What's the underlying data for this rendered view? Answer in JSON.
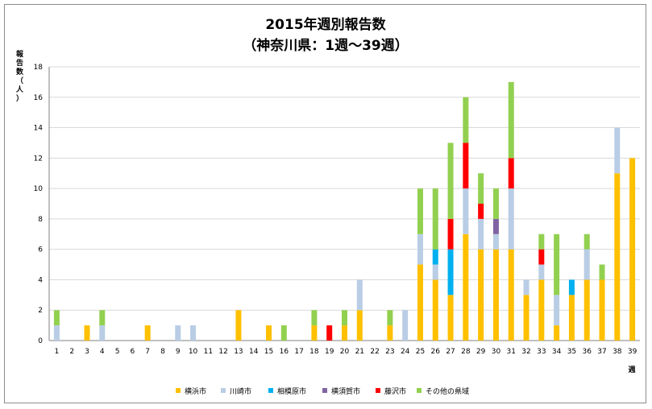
{
  "chart_data": {
    "type": "bar",
    "stacked": true,
    "title": "2015年週別報告数",
    "subtitle": "（神奈川県：1週～39週）",
    "xlabel": "週",
    "ylabel": "報告数（人）",
    "ylim": [
      0,
      18
    ],
    "yticks": [
      0,
      2,
      4,
      6,
      8,
      10,
      12,
      14,
      16,
      18
    ],
    "grid": true,
    "legend_position": "bottom",
    "categories": [
      "1",
      "2",
      "3",
      "4",
      "5",
      "6",
      "7",
      "8",
      "9",
      "10",
      "11",
      "12",
      "13",
      "14",
      "15",
      "16",
      "17",
      "18",
      "19",
      "20",
      "21",
      "22",
      "23",
      "24",
      "25",
      "26",
      "27",
      "28",
      "29",
      "30",
      "31",
      "32",
      "33",
      "34",
      "35",
      "36",
      "37",
      "38",
      "39"
    ],
    "series": [
      {
        "name": "横浜市",
        "color": "#FFC000",
        "values": [
          0,
          0,
          1,
          0,
          0,
          0,
          1,
          0,
          0,
          0,
          0,
          0,
          2,
          0,
          1,
          0,
          0,
          1,
          0,
          1,
          2,
          0,
          1,
          0,
          5,
          4,
          3,
          7,
          6,
          6,
          6,
          3,
          4,
          1,
          3,
          4,
          4,
          11,
          12
        ]
      },
      {
        "name": "川崎市",
        "color": "#B9CDE5",
        "values": [
          1,
          0,
          0,
          1,
          0,
          0,
          0,
          0,
          1,
          1,
          0,
          0,
          0,
          0,
          0,
          0,
          0,
          0,
          0,
          0,
          2,
          0,
          0,
          2,
          2,
          1,
          0,
          3,
          2,
          1,
          4,
          1,
          1,
          2,
          0,
          2,
          0,
          3,
          0
        ]
      },
      {
        "name": "相模原市",
        "color": "#00B0F0",
        "values": [
          0,
          0,
          0,
          0,
          0,
          0,
          0,
          0,
          0,
          0,
          0,
          0,
          0,
          0,
          0,
          0,
          0,
          0,
          0,
          0,
          0,
          0,
          0,
          0,
          0,
          1,
          3,
          0,
          0,
          0,
          0,
          0,
          0,
          0,
          1,
          0,
          0,
          0,
          0
        ]
      },
      {
        "name": "横須賀市",
        "color": "#8064A2",
        "values": [
          0,
          0,
          0,
          0,
          0,
          0,
          0,
          0,
          0,
          0,
          0,
          0,
          0,
          0,
          0,
          0,
          0,
          0,
          0,
          0,
          0,
          0,
          0,
          0,
          0,
          0,
          0,
          0,
          0,
          1,
          0,
          0,
          0,
          0,
          0,
          0,
          0,
          0,
          0
        ]
      },
      {
        "name": "藤沢市",
        "color": "#FF0000",
        "values": [
          0,
          0,
          0,
          0,
          0,
          0,
          0,
          0,
          0,
          0,
          0,
          0,
          0,
          0,
          0,
          0,
          0,
          0,
          1,
          0,
          0,
          0,
          0,
          0,
          0,
          0,
          2,
          3,
          1,
          0,
          2,
          0,
          1,
          0,
          0,
          0,
          0,
          0,
          0
        ]
      },
      {
        "name": "その他の県域",
        "color": "#92D050",
        "values": [
          1,
          0,
          0,
          1,
          0,
          0,
          0,
          0,
          0,
          0,
          0,
          0,
          0,
          0,
          0,
          1,
          0,
          1,
          0,
          1,
          0,
          0,
          1,
          0,
          3,
          4,
          5,
          3,
          2,
          2,
          5,
          0,
          1,
          4,
          0,
          1,
          1,
          0,
          0
        ]
      }
    ]
  }
}
